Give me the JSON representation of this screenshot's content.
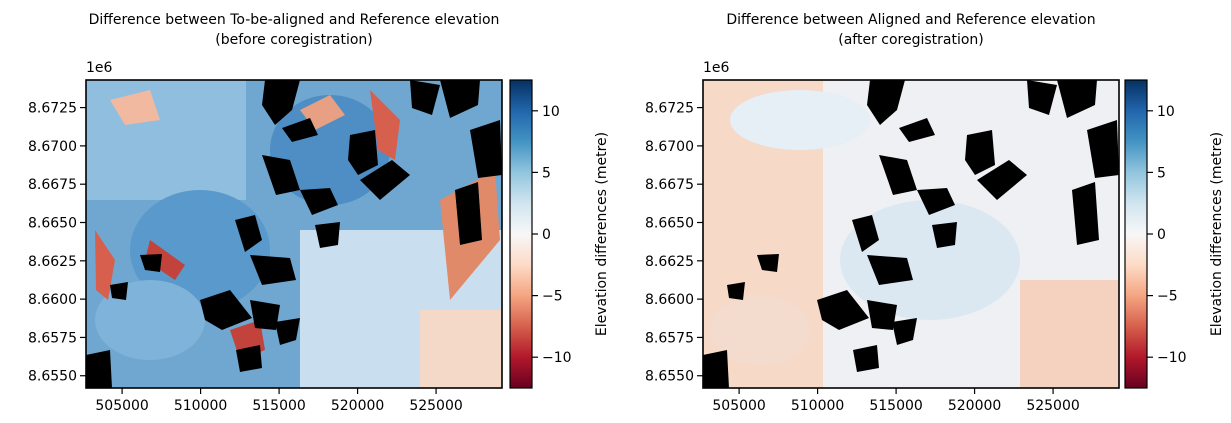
{
  "chart_data": [
    {
      "type": "heatmap",
      "title": "Difference between To-be-aligned and Reference elevation\n(before coregistration)",
      "x_offset_label": "",
      "y_offset_label": "1e6",
      "x_ticks": [
        505000,
        510000,
        515000,
        520000,
        525000
      ],
      "x_tick_labels": [
        "505000",
        "510000",
        "515000",
        "520000",
        "525000"
      ],
      "y_ticks": [
        8.6725,
        8.67,
        8.6675,
        8.665,
        8.6625,
        8.66,
        8.6575,
        8.655
      ],
      "y_tick_labels": [
        "8.6725",
        "8.6700",
        "8.6675",
        "8.6650",
        "8.6625",
        "8.6600",
        "8.6575",
        "8.6550"
      ],
      "xlim": [
        502700,
        529200
      ],
      "ylim": [
        8.6542,
        8.6743
      ],
      "colormap": "RdBu",
      "colorbar": {
        "label": "Elevation differences (metre)",
        "range": [
          -12.5,
          12.5
        ],
        "ticks": [
          10,
          5,
          0,
          -5,
          -10
        ],
        "tick_labels": [
          "10",
          "5",
          "0",
          "−5",
          "−10"
        ]
      },
      "no_data_color": "#000000",
      "dominant_tone": "blue"
    },
    {
      "type": "heatmap",
      "title": "Difference between Aligned and Reference elevation\n(after coregistration)",
      "x_offset_label": "",
      "y_offset_label": "1e6",
      "x_ticks": [
        505000,
        510000,
        515000,
        520000,
        525000
      ],
      "x_tick_labels": [
        "505000",
        "510000",
        "515000",
        "520000",
        "525000"
      ],
      "y_ticks": [
        8.6725,
        8.67,
        8.6675,
        8.665,
        8.6625,
        8.66,
        8.6575,
        8.655
      ],
      "y_tick_labels": [
        "8.6725",
        "8.6700",
        "8.6675",
        "8.6650",
        "8.6625",
        "8.6600",
        "8.6575",
        "8.6550"
      ],
      "xlim": [
        502700,
        529200
      ],
      "ylim": [
        8.6542,
        8.6743
      ],
      "colormap": "RdBu",
      "colorbar": {
        "label": "Elevation differences (metre)",
        "range": [
          -12.5,
          12.5
        ],
        "ticks": [
          10,
          5,
          0,
          -5,
          -10
        ],
        "tick_labels": [
          "10",
          "5",
          "0",
          "−5",
          "−10"
        ]
      },
      "no_data_color": "#000000",
      "dominant_tone": "neutral"
    }
  ],
  "colors": {
    "rdbu_stops": [
      "#67001f",
      "#b2182b",
      "#d6604d",
      "#f4a582",
      "#fddbc7",
      "#f7f7f7",
      "#d1e5f0",
      "#92c5de",
      "#4393c3",
      "#2166ac",
      "#053061"
    ],
    "no_data": "#000000",
    "axes": "#000000",
    "text": "#000000"
  }
}
